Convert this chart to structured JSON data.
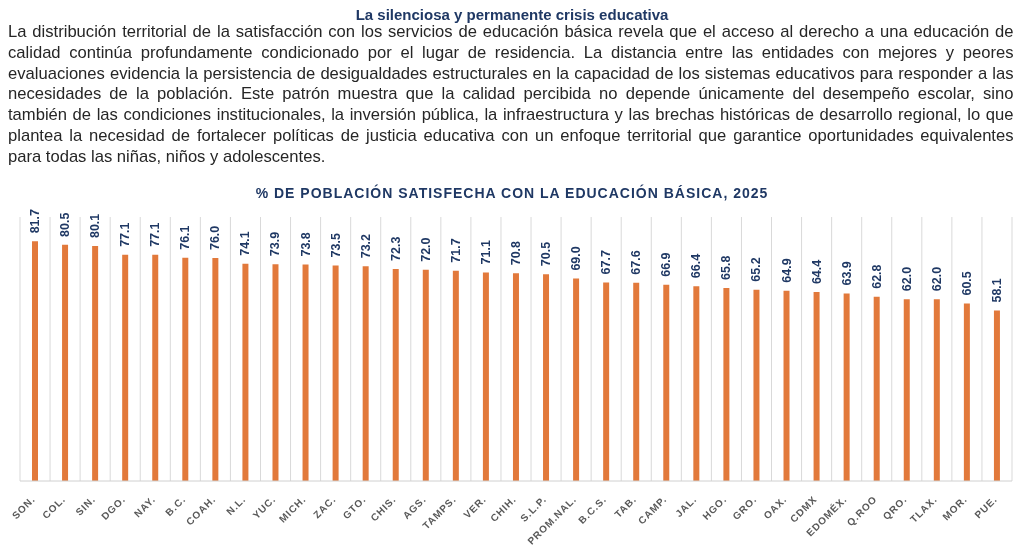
{
  "chart_data": {
    "type": "bar",
    "title": "La silenciosa y permanente crisis educativa",
    "subtitle": "% DE POBLACIÓN SATISFECHA CON LA EDUCACIÓN BÁSICA, 2025",
    "annotations": [
      "La distribución territorial de la satisfacción con los servicios de educación básica revela que el acceso al derecho a una educación de calidad continúa profundamente condicionado por el lugar de residencia. La distancia entre las entidades con mejores y peores evaluaciones evidencia la persistencia de desigualdades estructurales en la capacidad de los sistemas educativos para responder a las necesidades de la población. Este patrón muestra que la calidad percibida no depende únicamente del desempeño escolar, sino también de las condiciones institucionales, la inversión pública, la infraestructura y las brechas históricas de desarrollo regional, lo que plantea la necesidad de fortalecer políticas de justicia educativa con un enfoque territorial que garantice oportunidades equivalentes para todas las niñas, niños y adolescentes."
    ],
    "categories": [
      "SON.",
      "COL.",
      "SIN.",
      "DGO.",
      "NAY.",
      "B.C.",
      "COAH.",
      "N.L.",
      "YUC.",
      "MICH.",
      "ZAC.",
      "GTO.",
      "CHIS.",
      "AGS.",
      "TAMPS.",
      "VER.",
      "CHIH.",
      "S.L.P.",
      "PROM.NAL.",
      "B.C.S.",
      "TAB.",
      "CAMP.",
      "JAL.",
      "HGO.",
      "GRO.",
      "OAX.",
      "CDMX",
      "EDOMÉX.",
      "Q.ROO",
      "QRO.",
      "TLAX.",
      "MOR.",
      "PUE."
    ],
    "values": [
      81.7,
      80.5,
      80.1,
      77.1,
      77.1,
      76.1,
      76.0,
      74.1,
      73.9,
      73.8,
      73.5,
      73.2,
      72.3,
      72.0,
      71.7,
      71.1,
      70.8,
      70.5,
      69.0,
      67.7,
      67.6,
      66.9,
      66.4,
      65.8,
      65.2,
      64.9,
      64.4,
      63.9,
      62.8,
      62.0,
      62.0,
      60.5,
      58.1
    ],
    "value_labels": [
      "81.7",
      "80.5",
      "80.1",
      "77.1",
      "77.1",
      "76.1",
      "76.0",
      "74.1",
      "73.9",
      "73.8",
      "73.5",
      "73.2",
      "72.3",
      "72.0",
      "71.7",
      "71.1",
      "70.8",
      "70.5",
      "69.0",
      "67.7",
      "67.6",
      "66.9",
      "66.4",
      "65.8",
      "65.2",
      "64.9",
      "64.4",
      "63.9",
      "62.8",
      "62.0",
      "62.0",
      "60.5",
      "58.1"
    ],
    "color": "#e2793b",
    "ylim": [
      0,
      90
    ],
    "grid": "x",
    "tick_labels": "x"
  }
}
